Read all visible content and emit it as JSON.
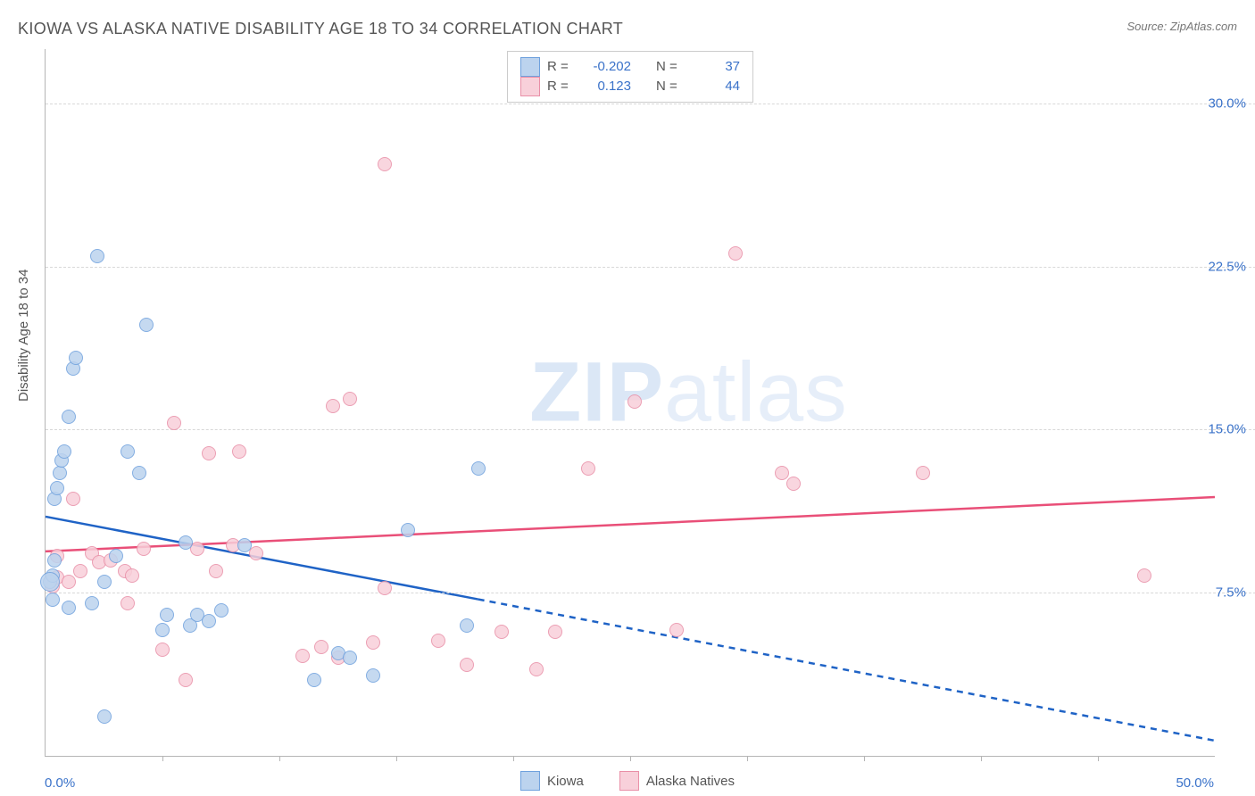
{
  "title": "KIOWA VS ALASKA NATIVE DISABILITY AGE 18 TO 34 CORRELATION CHART",
  "source": "Source: ZipAtlas.com",
  "ylabel": "Disability Age 18 to 34",
  "watermark_a": "ZIP",
  "watermark_b": "atlas",
  "chart": {
    "type": "scatter",
    "xlim": [
      0,
      50
    ],
    "ylim": [
      0,
      32.5
    ],
    "x_tick_labels": [
      "0.0%",
      "50.0%"
    ],
    "x_minor_ticks": [
      5,
      10,
      15,
      20,
      25,
      30,
      35,
      40,
      45
    ],
    "y_ticks": [
      7.5,
      15.0,
      22.5,
      30.0
    ],
    "y_tick_labels": [
      "7.5%",
      "15.0%",
      "22.5%",
      "30.0%"
    ],
    "grid_color": "#d8d8d8",
    "axis_color": "#b5b5b5",
    "tick_label_color": "#3a72c9",
    "background_color": "#ffffff",
    "marker_radius": 7,
    "marker_radius_large": 10,
    "series": [
      {
        "name": "Kiowa",
        "R": "-0.202",
        "N": "37",
        "fill": "#bcd3ee",
        "stroke": "#6fa1dd",
        "line_color": "#1f63c6",
        "line_solid": {
          "x1": 0,
          "y1": 11.0,
          "x2": 18.5,
          "y2": 7.2
        },
        "line_dash": {
          "x1": 18.5,
          "y1": 7.2,
          "x2": 50.0,
          "y2": 0.7
        },
        "points": [
          [
            0.2,
            8.0
          ],
          [
            0.3,
            7.2
          ],
          [
            0.3,
            8.3
          ],
          [
            0.4,
            9.0
          ],
          [
            0.4,
            11.8
          ],
          [
            0.5,
            12.3
          ],
          [
            0.6,
            13.0
          ],
          [
            0.7,
            13.6
          ],
          [
            0.8,
            14.0
          ],
          [
            1.0,
            15.6
          ],
          [
            1.0,
            6.8
          ],
          [
            1.2,
            17.8
          ],
          [
            1.3,
            18.3
          ],
          [
            2.0,
            7.0
          ],
          [
            2.2,
            23.0
          ],
          [
            2.5,
            1.8
          ],
          [
            2.5,
            8.0
          ],
          [
            3.0,
            9.2
          ],
          [
            3.5,
            14.0
          ],
          [
            4.0,
            13.0
          ],
          [
            4.3,
            19.8
          ],
          [
            5.0,
            5.8
          ],
          [
            5.2,
            6.5
          ],
          [
            6.0,
            9.8
          ],
          [
            6.2,
            6.0
          ],
          [
            6.5,
            6.5
          ],
          [
            7.0,
            6.2
          ],
          [
            7.5,
            6.7
          ],
          [
            8.5,
            9.7
          ],
          [
            11.5,
            3.5
          ],
          [
            12.5,
            4.7
          ],
          [
            13.0,
            4.5
          ],
          [
            14.0,
            3.7
          ],
          [
            15.5,
            10.4
          ],
          [
            18.5,
            13.2
          ],
          [
            18.0,
            6.0
          ]
        ],
        "big_point": [
          0.2,
          8.0
        ]
      },
      {
        "name": "Alaska Natives",
        "R": "0.123",
        "N": "44",
        "fill": "#f8d0da",
        "stroke": "#e98fa7",
        "line_color": "#e94f78",
        "line_solid": {
          "x1": 0,
          "y1": 9.4,
          "x2": 50.0,
          "y2": 11.9
        },
        "line_dash": null,
        "points": [
          [
            0.3,
            7.8
          ],
          [
            0.5,
            8.2
          ],
          [
            0.5,
            9.2
          ],
          [
            1.0,
            8.0
          ],
          [
            1.2,
            11.8
          ],
          [
            1.5,
            8.5
          ],
          [
            2.0,
            9.3
          ],
          [
            2.3,
            8.9
          ],
          [
            2.8,
            9.0
          ],
          [
            3.4,
            8.5
          ],
          [
            3.5,
            7.0
          ],
          [
            3.7,
            8.3
          ],
          [
            4.2,
            9.5
          ],
          [
            5.0,
            4.9
          ],
          [
            5.5,
            15.3
          ],
          [
            6.0,
            3.5
          ],
          [
            6.5,
            9.5
          ],
          [
            7.0,
            13.9
          ],
          [
            7.3,
            8.5
          ],
          [
            8.0,
            9.7
          ],
          [
            8.3,
            14.0
          ],
          [
            9.0,
            9.3
          ],
          [
            11.0,
            4.6
          ],
          [
            11.8,
            5.0
          ],
          [
            12.3,
            16.1
          ],
          [
            12.5,
            4.5
          ],
          [
            13.0,
            16.4
          ],
          [
            14.0,
            5.2
          ],
          [
            14.5,
            7.7
          ],
          [
            14.5,
            27.2
          ],
          [
            16.8,
            5.3
          ],
          [
            18.0,
            4.2
          ],
          [
            19.5,
            5.7
          ],
          [
            21.0,
            4.0
          ],
          [
            21.8,
            5.7
          ],
          [
            23.2,
            13.2
          ],
          [
            25.2,
            16.3
          ],
          [
            27.0,
            5.8
          ],
          [
            29.5,
            23.1
          ],
          [
            31.5,
            13.0
          ],
          [
            32.0,
            12.5
          ],
          [
            37.5,
            13.0
          ],
          [
            47.0,
            8.3
          ]
        ],
        "big_point": null
      }
    ]
  },
  "legend_bottom": [
    {
      "label": "Kiowa",
      "fill": "#bcd3ee",
      "stroke": "#6fa1dd"
    },
    {
      "label": "Alaska Natives",
      "fill": "#f8d0da",
      "stroke": "#e98fa7"
    }
  ]
}
